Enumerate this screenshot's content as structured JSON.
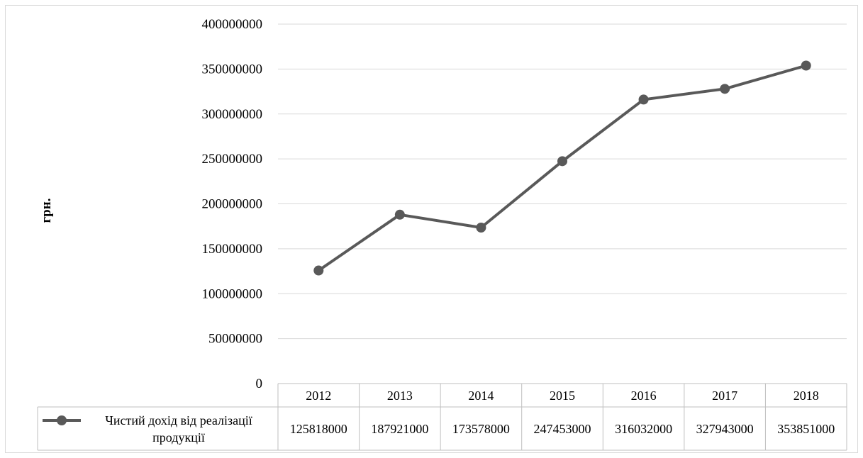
{
  "chart_data": {
    "type": "line",
    "categories": [
      "2012",
      "2013",
      "2014",
      "2015",
      "2016",
      "2017",
      "2018"
    ],
    "series": [
      {
        "name": "Чистий дохід від реалізації продукції",
        "values": [
          125818000,
          187921000,
          173578000,
          247453000,
          316032000,
          327943000,
          353851000
        ]
      }
    ],
    "ylabel": "грн.",
    "ylim": [
      0,
      400000000
    ],
    "yticks": [
      "0",
      "50000000",
      "100000000",
      "150000000",
      "200000000",
      "250000000",
      "300000000",
      "350000000",
      "400000000"
    ],
    "data_table": {
      "legend_line1": "Чистий дохід від реалізації",
      "legend_line2": "продукції",
      "values": [
        "125818000",
        "187921000",
        "173578000",
        "247453000",
        "316032000",
        "327943000",
        "353851000"
      ]
    },
    "grid": true,
    "legend": "data-table-left",
    "colors": {
      "series": "#595959",
      "grid": "#d9d9d9",
      "table_border": "#bfbfbf"
    }
  }
}
